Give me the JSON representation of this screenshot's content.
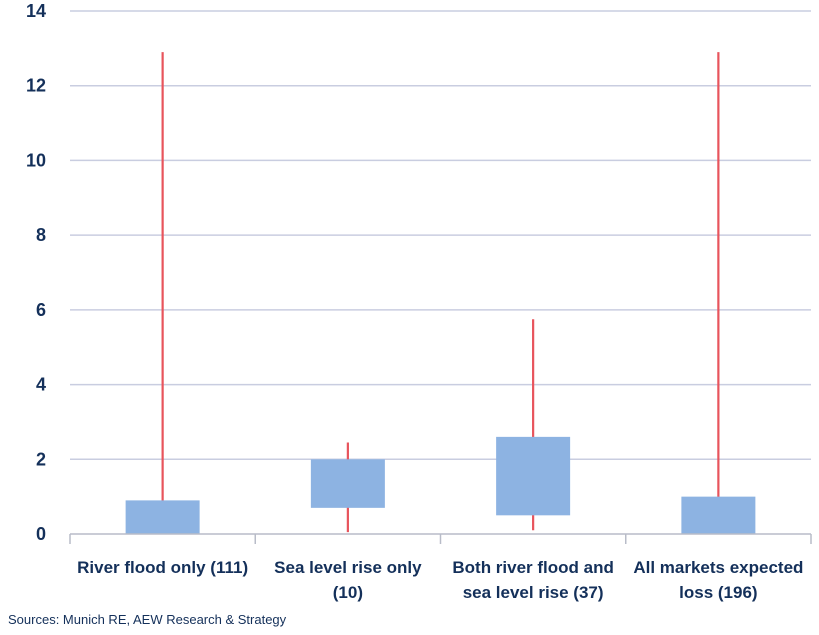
{
  "chart_data": {
    "type": "box",
    "ylim": [
      0,
      14
    ],
    "yticks": [
      0,
      2,
      4,
      6,
      8,
      10,
      12,
      14
    ],
    "grid": true,
    "categories": [
      [
        "River flood only (111)"
      ],
      [
        "Sea level rise only",
        "(10)"
      ],
      [
        "Both river flood and",
        "sea level rise (37)"
      ],
      [
        "All markets expected",
        "loss  (196)"
      ]
    ],
    "boxes": [
      {
        "low": 0.0,
        "q1": 0.0,
        "q3": 0.9,
        "high": 12.9
      },
      {
        "low": 0.05,
        "q1": 0.7,
        "q3": 2.0,
        "high": 2.45
      },
      {
        "low": 0.1,
        "q1": 0.5,
        "q3": 2.6,
        "high": 5.75
      },
      {
        "low": 0.0,
        "q1": 0.0,
        "q3": 1.0,
        "high": 12.9
      }
    ],
    "colors": {
      "box": "#8db3e2",
      "whisker": "#e8545c",
      "grid": "#c9cde0",
      "text": "#14305a"
    }
  },
  "footer": {
    "source": "Sources: Munich RE, AEW Research & Strategy"
  }
}
